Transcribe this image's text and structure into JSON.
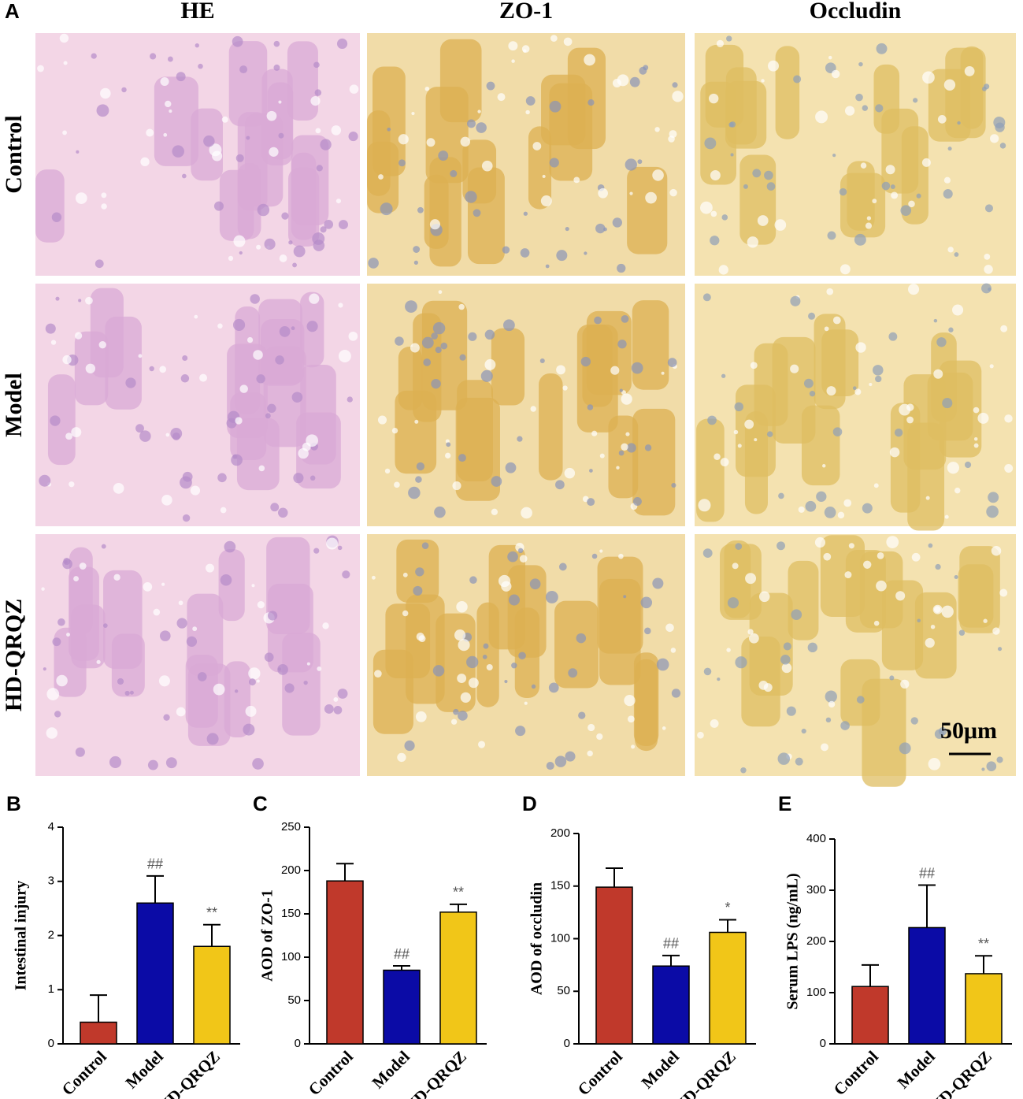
{
  "figure_a": {
    "label": "A",
    "columns": [
      "HE",
      "ZO-1",
      "Occludin"
    ],
    "rows": [
      "Control",
      "Model",
      "HD-QRQZ"
    ],
    "scale_bar": "50μm"
  },
  "chart_data": [
    {
      "type": "bar",
      "panel": "B",
      "y_label": "Intestinal injury",
      "categories": [
        "Control",
        "Model",
        "HD-QRQZ"
      ],
      "values": [
        0.4,
        2.6,
        1.8
      ],
      "errors": [
        0.5,
        0.5,
        0.4
      ],
      "annotations": [
        null,
        "##",
        "**"
      ],
      "colors": [
        "#c0392b",
        "#0b0ba6",
        "#f1c618"
      ],
      "ylim": [
        0,
        4
      ],
      "yticks": [
        0,
        1,
        2,
        3,
        4
      ]
    },
    {
      "type": "bar",
      "panel": "C",
      "y_label": "AOD of ZO-1",
      "categories": [
        "Control",
        "Model",
        "HD-QRQZ"
      ],
      "values": [
        188,
        85,
        152
      ],
      "errors": [
        20,
        5,
        9
      ],
      "annotations": [
        null,
        "##",
        "**"
      ],
      "colors": [
        "#c0392b",
        "#0b0ba6",
        "#f1c618"
      ],
      "ylim": [
        0,
        250
      ],
      "yticks": [
        0,
        50,
        100,
        150,
        200,
        250
      ]
    },
    {
      "type": "bar",
      "panel": "D",
      "y_label": "AOD of occludin",
      "categories": [
        "Control",
        "Model",
        "HD-QRQZ"
      ],
      "values": [
        149,
        74,
        106
      ],
      "errors": [
        18,
        10,
        12
      ],
      "annotations": [
        null,
        "##",
        "*"
      ],
      "colors": [
        "#c0392b",
        "#0b0ba6",
        "#f1c618"
      ],
      "ylim": [
        0,
        200
      ],
      "yticks": [
        0,
        50,
        100,
        150,
        200
      ]
    },
    {
      "type": "bar",
      "panel": "E",
      "y_label": "Serum LPS (ng/mL)",
      "categories": [
        "Control",
        "Model",
        "HD-QRQZ"
      ],
      "values": [
        112,
        227,
        137
      ],
      "errors": [
        42,
        83,
        35
      ],
      "annotations": [
        null,
        "##",
        "**"
      ],
      "colors": [
        "#c0392b",
        "#0b0ba6",
        "#f1c618"
      ],
      "ylim": [
        0,
        400
      ],
      "yticks": [
        0,
        100,
        200,
        300,
        400
      ]
    }
  ]
}
